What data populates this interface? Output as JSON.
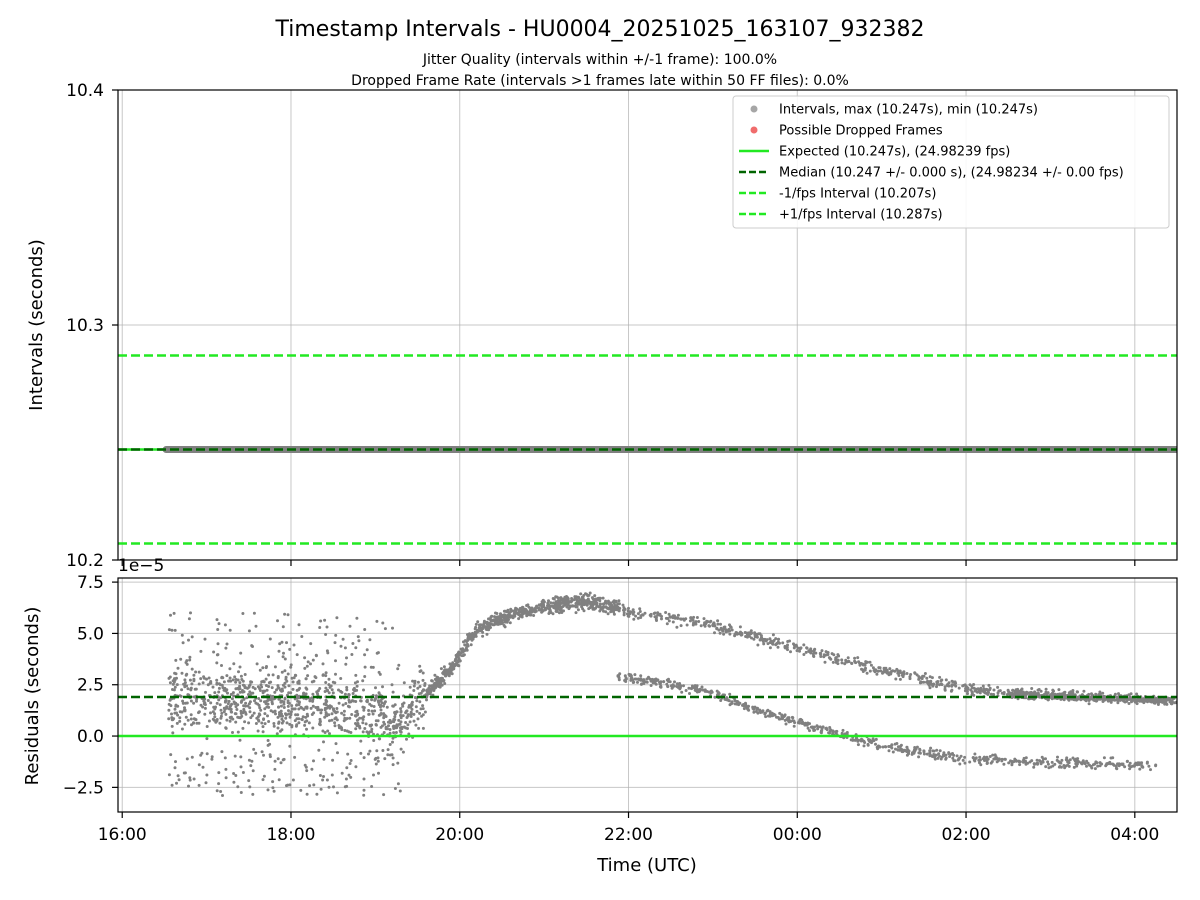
{
  "chart_data": {
    "type": "scatter",
    "title": "Timestamp Intervals - HU0004_20251025_163107_932382",
    "subtitle_1": "Jitter Quality (intervals within +/-1 frame): 100.0%",
    "subtitle_2": "Dropped Frame Rate (intervals >1 frames late within 50 FF files): 0.0%",
    "xlabel": "Time (UTC)",
    "x_tick_labels": [
      "16:00",
      "18:00",
      "20:00",
      "22:00",
      "00:00",
      "02:00",
      "04:00"
    ],
    "x_ticks_hours": [
      0,
      2,
      4,
      6,
      8,
      10,
      12
    ],
    "x_range_hours": [
      -0.05,
      12.5
    ],
    "top_panel": {
      "ylabel": "Intervals (seconds)",
      "ylim": [
        10.2,
        10.4
      ],
      "y_ticks": [
        10.2,
        10.3,
        10.4
      ],
      "y_tick_labels": [
        "10.2",
        "10.3",
        "10.4"
      ],
      "intervals_value": 10.247,
      "intervals_start_hour": 0.52,
      "expected": 10.247,
      "median": 10.247,
      "minus_interval": 10.207,
      "plus_interval": 10.287
    },
    "bottom_panel": {
      "ylabel": "Residuals (seconds)",
      "offset_label": "1e−5",
      "ylim": [
        -3.7,
        7.7
      ],
      "y_ticks": [
        -2.5,
        0.0,
        2.5,
        5.0,
        7.5
      ],
      "y_tick_labels": [
        "−2.5",
        "0.0",
        "2.5",
        "5.0",
        "7.5"
      ],
      "median_residual": 1.9,
      "expected_residual": 0.0
    },
    "legend": [
      {
        "label": "Intervals, max (10.247s), min (10.247s)",
        "kind": "dot",
        "color": "#a6a6a6"
      },
      {
        "label": "Possible Dropped Frames",
        "kind": "dot",
        "color": "#f06c6c"
      },
      {
        "label": "Expected (10.247s), (24.98239 fps)",
        "kind": "solid",
        "color": "#22e922"
      },
      {
        "label": "Median (10.247 +/- 0.000 s), (24.98234 +/- 0.00 fps)",
        "kind": "dash",
        "color": "#006400"
      },
      {
        "label": "-1/fps Interval (10.207s)",
        "kind": "dash",
        "color": "#22e922"
      },
      {
        "label": "+1/fps Interval (10.287s)",
        "kind": "dash",
        "color": "#22e922"
      }
    ],
    "colors": {
      "points": "#808080",
      "expected": "#22e922",
      "median": "#006400",
      "limits": "#22e922"
    }
  }
}
